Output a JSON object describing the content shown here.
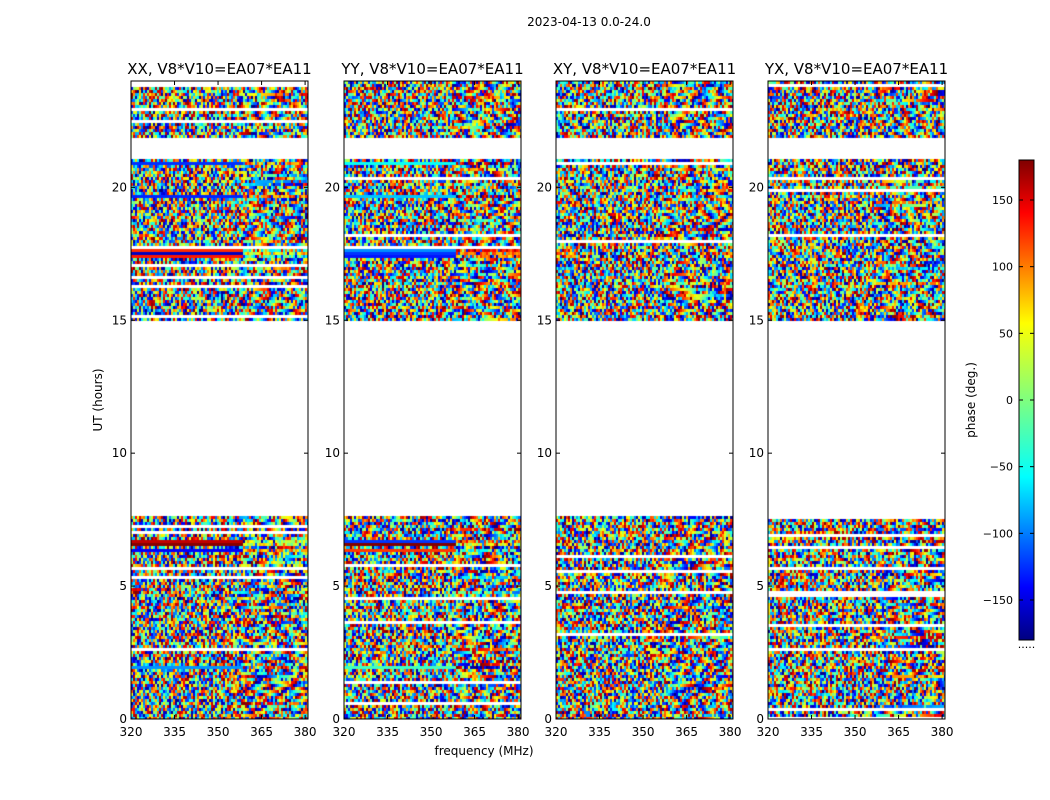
{
  "suptitle": "2023-04-13 0.0-24.0",
  "chart_data": {
    "type": "heatmap",
    "xlabel": "frequency (MHz)",
    "ylabel": "UT (hours)",
    "colorbar_label": "phase (deg.)",
    "colormap": "jet",
    "xlim": [
      320,
      381
    ],
    "ylim": [
      0,
      24
    ],
    "xticks": [
      320,
      335,
      350,
      365,
      380
    ],
    "yticks": [
      0,
      5,
      10,
      15,
      20
    ],
    "clim": [
      -180,
      180
    ],
    "cbar_ticks": [
      -150,
      -100,
      -50,
      0,
      50,
      100,
      150
    ],
    "cbar_tick_labels": [
      "−150",
      "−100",
      "−50",
      "0",
      "50",
      "100",
      "150"
    ],
    "cbar_bottom_text": ".....",
    "data_gaps_hours": [
      [
        7.6,
        15.0
      ],
      [
        21.1,
        21.8
      ]
    ],
    "panels": [
      {
        "title": "XX, V8*V10=EA07*EA11",
        "polarization": "XX",
        "coherent_bands_hours": [
          [
            1.85,
            1.95
          ],
          [
            6.3,
            6.45
          ],
          [
            6.55,
            6.75
          ],
          [
            17.3,
            17.8
          ],
          [
            19.55,
            19.7
          ],
          [
            20.8,
            21.0
          ]
        ]
      },
      {
        "title": "YY, V8*V10=EA07*EA11",
        "polarization": "YY",
        "coherent_bands_hours": [
          [
            1.85,
            1.95
          ],
          [
            6.3,
            6.45
          ],
          [
            6.55,
            6.75
          ],
          [
            17.3,
            17.8
          ],
          [
            19.55,
            19.7
          ],
          [
            20.8,
            21.0
          ]
        ]
      },
      {
        "title": "XY, V8*V10=EA07*EA11",
        "polarization": "XY",
        "coherent_bands_hours": []
      },
      {
        "title": "YX, V8*V10=EA07*EA11",
        "polarization": "YX",
        "coherent_bands_hours": []
      }
    ]
  }
}
